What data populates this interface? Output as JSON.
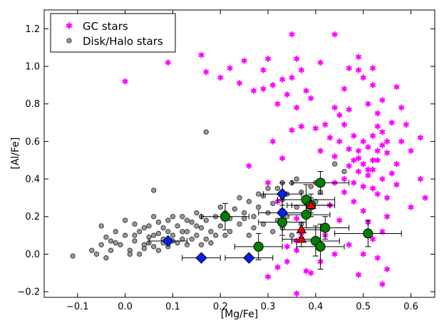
{
  "chart_data": {
    "type": "scatter",
    "title": "",
    "xlabel": "[Mg/Fe]",
    "ylabel": "[Al/Fe]",
    "xlim": [
      -0.17,
      0.65
    ],
    "ylim": [
      -0.23,
      1.3
    ],
    "xticks": [
      -0.1,
      0.0,
      0.1,
      0.2,
      0.3,
      0.4,
      0.5,
      0.6
    ],
    "xtick_labels": [
      "−0.1",
      "0.0",
      "0.1",
      "0.2",
      "0.3",
      "0.4",
      "0.5",
      "0.6"
    ],
    "yticks": [
      -0.2,
      0.0,
      0.2,
      0.4,
      0.6,
      0.8,
      1.0,
      1.2
    ],
    "ytick_labels": [
      "−0.2",
      "0.0",
      "0.2",
      "0.4",
      "0.6",
      "0.8",
      "1.0",
      "1.2"
    ],
    "grid": false,
    "legend_position": "top-left",
    "colors": {
      "gc": "#ff00ff",
      "disk_fill": "#999999",
      "disk_edge": "#333333",
      "circle": "#008000",
      "diamond": "#0022ee",
      "triangle": "#ee0000"
    },
    "series": [
      {
        "name": "GC stars",
        "marker": "asterisk",
        "points": [
          [
            0.0,
            0.92
          ],
          [
            0.09,
            1.02
          ],
          [
            0.16,
            1.06
          ],
          [
            0.17,
            0.97
          ],
          [
            0.2,
            0.94
          ],
          [
            0.22,
            0.99
          ],
          [
            0.25,
            1.03
          ],
          [
            0.29,
            0.98
          ],
          [
            0.3,
            1.04
          ],
          [
            0.27,
            0.87
          ],
          [
            0.29,
            0.88
          ],
          [
            0.24,
            0.91
          ],
          [
            0.31,
            0.9
          ],
          [
            0.32,
            0.8
          ],
          [
            0.34,
            0.85
          ],
          [
            0.35,
            1.17
          ],
          [
            0.36,
            1.04
          ],
          [
            0.33,
            0.93
          ],
          [
            0.35,
            0.94
          ],
          [
            0.37,
            0.98
          ],
          [
            0.38,
            0.87
          ],
          [
            0.39,
            0.83
          ],
          [
            0.36,
            0.78
          ],
          [
            0.41,
            1.02
          ],
          [
            0.44,
            1.17
          ],
          [
            0.46,
            0.88
          ],
          [
            0.47,
            0.99
          ],
          [
            0.49,
            1.05
          ],
          [
            0.49,
            0.98
          ],
          [
            0.5,
            0.94
          ],
          [
            0.52,
            0.9
          ],
          [
            0.52,
            0.99
          ],
          [
            0.51,
            0.8
          ],
          [
            0.47,
            0.77
          ],
          [
            0.45,
            0.74
          ],
          [
            0.44,
            0.78
          ],
          [
            0.46,
            0.69
          ],
          [
            0.42,
            0.69
          ],
          [
            0.4,
            0.67
          ],
          [
            0.37,
            0.68
          ],
          [
            0.35,
            0.66
          ],
          [
            0.43,
            0.62
          ],
          [
            0.45,
            0.6
          ],
          [
            0.41,
            0.55
          ],
          [
            0.44,
            0.52
          ],
          [
            0.47,
            0.56
          ],
          [
            0.48,
            0.63
          ],
          [
            0.5,
            0.6
          ],
          [
            0.49,
            0.51
          ],
          [
            0.51,
            0.57
          ],
          [
            0.52,
            0.63
          ],
          [
            0.53,
            0.68
          ],
          [
            0.54,
            0.65
          ],
          [
            0.54,
            0.58
          ],
          [
            0.55,
            0.54
          ],
          [
            0.53,
            0.5
          ],
          [
            0.52,
            0.45
          ],
          [
            0.51,
            0.42
          ],
          [
            0.49,
            0.44
          ],
          [
            0.47,
            0.47
          ],
          [
            0.46,
            0.4
          ],
          [
            0.48,
            0.38
          ],
          [
            0.5,
            0.36
          ],
          [
            0.52,
            0.35
          ],
          [
            0.53,
            0.32
          ],
          [
            0.55,
            0.3
          ],
          [
            0.54,
            0.4
          ],
          [
            0.56,
            0.43
          ],
          [
            0.57,
            0.48
          ],
          [
            0.55,
            0.6
          ],
          [
            0.56,
            0.7
          ],
          [
            0.58,
            0.78
          ],
          [
            0.57,
            0.89
          ],
          [
            0.54,
            0.82
          ],
          [
            0.53,
            0.75
          ],
          [
            0.59,
            0.69
          ],
          [
            0.58,
            0.6
          ],
          [
            0.6,
            0.55
          ],
          [
            0.62,
            0.62
          ],
          [
            0.57,
            0.37
          ],
          [
            0.6,
            0.25
          ],
          [
            0.62,
            0.4
          ],
          [
            0.63,
            0.3
          ],
          [
            0.55,
            0.2
          ],
          [
            0.54,
            0.12
          ],
          [
            0.52,
            0.08
          ],
          [
            0.5,
            0.0
          ],
          [
            0.49,
            -0.11
          ],
          [
            0.53,
            -0.02
          ],
          [
            0.55,
            -0.08
          ],
          [
            0.54,
            -0.16
          ],
          [
            0.47,
            0.05
          ],
          [
            0.44,
            0.0
          ],
          [
            0.41,
            -0.04
          ],
          [
            0.38,
            -0.09
          ],
          [
            0.39,
            -0.1
          ],
          [
            0.36,
            0.02
          ],
          [
            0.34,
            -0.04
          ],
          [
            0.32,
            -0.07
          ],
          [
            0.3,
            -0.12
          ],
          [
            0.36,
            -0.21
          ],
          [
            0.37,
            0.11
          ],
          [
            0.36,
            0.07
          ],
          [
            0.34,
            0.04
          ],
          [
            0.42,
            0.1
          ],
          [
            0.45,
            0.18
          ],
          [
            0.43,
            0.26
          ],
          [
            0.46,
            0.33
          ],
          [
            0.44,
            0.38
          ],
          [
            0.48,
            0.28
          ],
          [
            0.5,
            0.23
          ],
          [
            0.51,
            0.17
          ],
          [
            0.32,
            0.28
          ],
          [
            0.36,
            0.19
          ],
          [
            0.31,
            0.6
          ],
          [
            0.33,
            0.51
          ],
          [
            0.26,
            0.47
          ],
          [
            0.3,
            0.38
          ],
          [
            0.52,
            0.5
          ],
          [
            0.53,
            0.55
          ],
          [
            0.5,
            0.48
          ],
          [
            0.49,
            0.55
          ],
          [
            0.51,
            0.45
          ],
          [
            0.48,
            0.5
          ]
        ]
      },
      {
        "name": "Disk/Halo stars",
        "marker": "circle",
        "points": [
          [
            -0.11,
            -0.01
          ],
          [
            -0.07,
            0.02
          ],
          [
            -0.05,
            0.05
          ],
          [
            -0.06,
            0.0
          ],
          [
            -0.04,
            0.09
          ],
          [
            -0.03,
            0.02
          ],
          [
            -0.05,
            0.15
          ],
          [
            -0.04,
            -0.02
          ],
          [
            -0.02,
            0.06
          ],
          [
            -0.02,
            0.12
          ],
          [
            -0.01,
            0.05
          ],
          [
            0.0,
            0.1
          ],
          [
            0.01,
            0.02
          ],
          [
            0.02,
            0.07
          ],
          [
            0.03,
            0.12
          ],
          [
            0.03,
            0.0
          ],
          [
            0.04,
            0.05
          ],
          [
            0.05,
            0.09
          ],
          [
            0.05,
            0.15
          ],
          [
            0.06,
            0.04
          ],
          [
            0.07,
            0.11
          ],
          [
            0.06,
            0.2
          ],
          [
            0.07,
            0.02
          ],
          [
            0.08,
            0.08
          ],
          [
            0.08,
            0.14
          ],
          [
            0.09,
            0.18
          ],
          [
            0.09,
            0.04
          ],
          [
            0.1,
            0.1
          ],
          [
            0.11,
            0.15
          ],
          [
            0.12,
            0.08
          ],
          [
            0.12,
            0.2
          ],
          [
            0.13,
            0.05
          ],
          [
            0.13,
            0.12
          ],
          [
            0.14,
            0.17
          ],
          [
            0.15,
            0.1
          ],
          [
            0.15,
            0.22
          ],
          [
            0.16,
            0.14
          ],
          [
            0.17,
            0.08
          ],
          [
            0.17,
            0.18
          ],
          [
            0.18,
            0.12
          ],
          [
            0.19,
            0.2
          ],
          [
            0.2,
            0.15
          ],
          [
            0.21,
            0.1
          ],
          [
            0.22,
            0.19
          ],
          [
            0.23,
            0.24
          ],
          [
            0.24,
            0.16
          ],
          [
            0.25,
            0.22
          ],
          [
            0.26,
            0.28
          ],
          [
            0.27,
            0.2
          ],
          [
            0.28,
            0.25
          ],
          [
            0.29,
            0.31
          ],
          [
            0.3,
            0.22
          ],
          [
            0.31,
            0.27
          ],
          [
            0.32,
            0.35
          ],
          [
            0.33,
            0.29
          ],
          [
            0.34,
            0.32
          ],
          [
            0.34,
            0.2
          ],
          [
            0.35,
            0.38
          ],
          [
            0.36,
            0.25
          ],
          [
            0.37,
            0.33
          ],
          [
            0.38,
            0.2
          ],
          [
            0.39,
            0.36
          ],
          [
            0.4,
            0.28
          ],
          [
            0.41,
            0.33
          ],
          [
            0.44,
            0.48
          ],
          [
            0.46,
            0.44
          ],
          [
            0.17,
            0.65
          ],
          [
            0.06,
            0.34
          ],
          [
            0.0,
            0.18
          ],
          [
            0.02,
            0.16
          ],
          [
            0.04,
            0.14
          ],
          [
            0.06,
            0.1
          ],
          [
            0.08,
            0.06
          ],
          [
            0.1,
            0.2
          ],
          [
            0.11,
            0.06
          ],
          [
            0.14,
            0.08
          ],
          [
            0.16,
            0.2
          ],
          [
            0.18,
            0.06
          ],
          [
            0.2,
            0.25
          ],
          [
            0.22,
            0.12
          ],
          [
            0.24,
            0.3
          ],
          [
            0.26,
            0.1
          ],
          [
            0.28,
            0.32
          ],
          [
            0.3,
            0.35
          ],
          [
            0.32,
            0.18
          ],
          [
            0.33,
            0.38
          ],
          [
            0.36,
            0.4
          ],
          [
            0.38,
            0.27
          ],
          [
            0.4,
            0.38
          ],
          [
            0.25,
            0.19
          ],
          [
            0.27,
            0.14
          ],
          [
            0.29,
            0.16
          ],
          [
            0.31,
            0.12
          ],
          [
            0.33,
            0.14
          ],
          [
            0.35,
            0.1
          ],
          [
            0.37,
            0.16
          ],
          [
            -0.03,
            0.07
          ],
          [
            0.01,
            0.0
          ],
          [
            0.02,
            0.1
          ],
          [
            0.04,
            0.03
          ],
          [
            0.05,
            0.06
          ],
          [
            0.07,
            0.17
          ],
          [
            0.09,
            0.12
          ],
          [
            0.1,
            0.07
          ],
          [
            0.12,
            0.12
          ],
          [
            0.13,
            0.18
          ],
          [
            0.15,
            0.15
          ],
          [
            0.16,
            0.05
          ],
          [
            0.19,
            0.1
          ],
          [
            0.21,
            0.22
          ]
        ]
      },
      {
        "name": "",
        "marker": "big-circle",
        "points": [
          [
            0.21,
            0.2,
            0.05,
            0.07
          ],
          [
            0.28,
            0.04,
            0.05,
            0.07
          ],
          [
            0.33,
            0.17,
            0.05,
            0.07
          ],
          [
            0.38,
            0.29,
            0.06,
            0.08
          ],
          [
            0.39,
            0.26,
            0.05,
            0.06
          ],
          [
            0.38,
            0.21,
            0.05,
            0.07
          ],
          [
            0.41,
            0.38,
            0.06,
            0.06
          ],
          [
            0.42,
            0.14,
            0.05,
            0.06
          ],
          [
            0.4,
            0.07,
            0.05,
            0.08
          ],
          [
            0.41,
            0.04,
            0.05,
            0.12
          ],
          [
            0.51,
            0.11,
            0.07,
            0.07
          ]
        ]
      },
      {
        "name": "",
        "marker": "diamond",
        "points": [
          [
            0.09,
            0.07,
            0.04,
            0.0
          ],
          [
            0.16,
            -0.02,
            0.04,
            0.0
          ],
          [
            0.26,
            -0.02,
            0.05,
            0.0
          ],
          [
            0.33,
            0.22,
            0.05,
            0.07
          ],
          [
            0.33,
            0.32,
            0.04,
            0.06
          ]
        ]
      },
      {
        "name": "",
        "marker": "triangle",
        "points": [
          [
            0.39,
            0.26,
            0.04,
            0.04
          ],
          [
            0.37,
            0.13,
            0.04,
            0.04
          ],
          [
            0.37,
            0.08,
            0.04,
            0.04
          ]
        ]
      }
    ]
  }
}
